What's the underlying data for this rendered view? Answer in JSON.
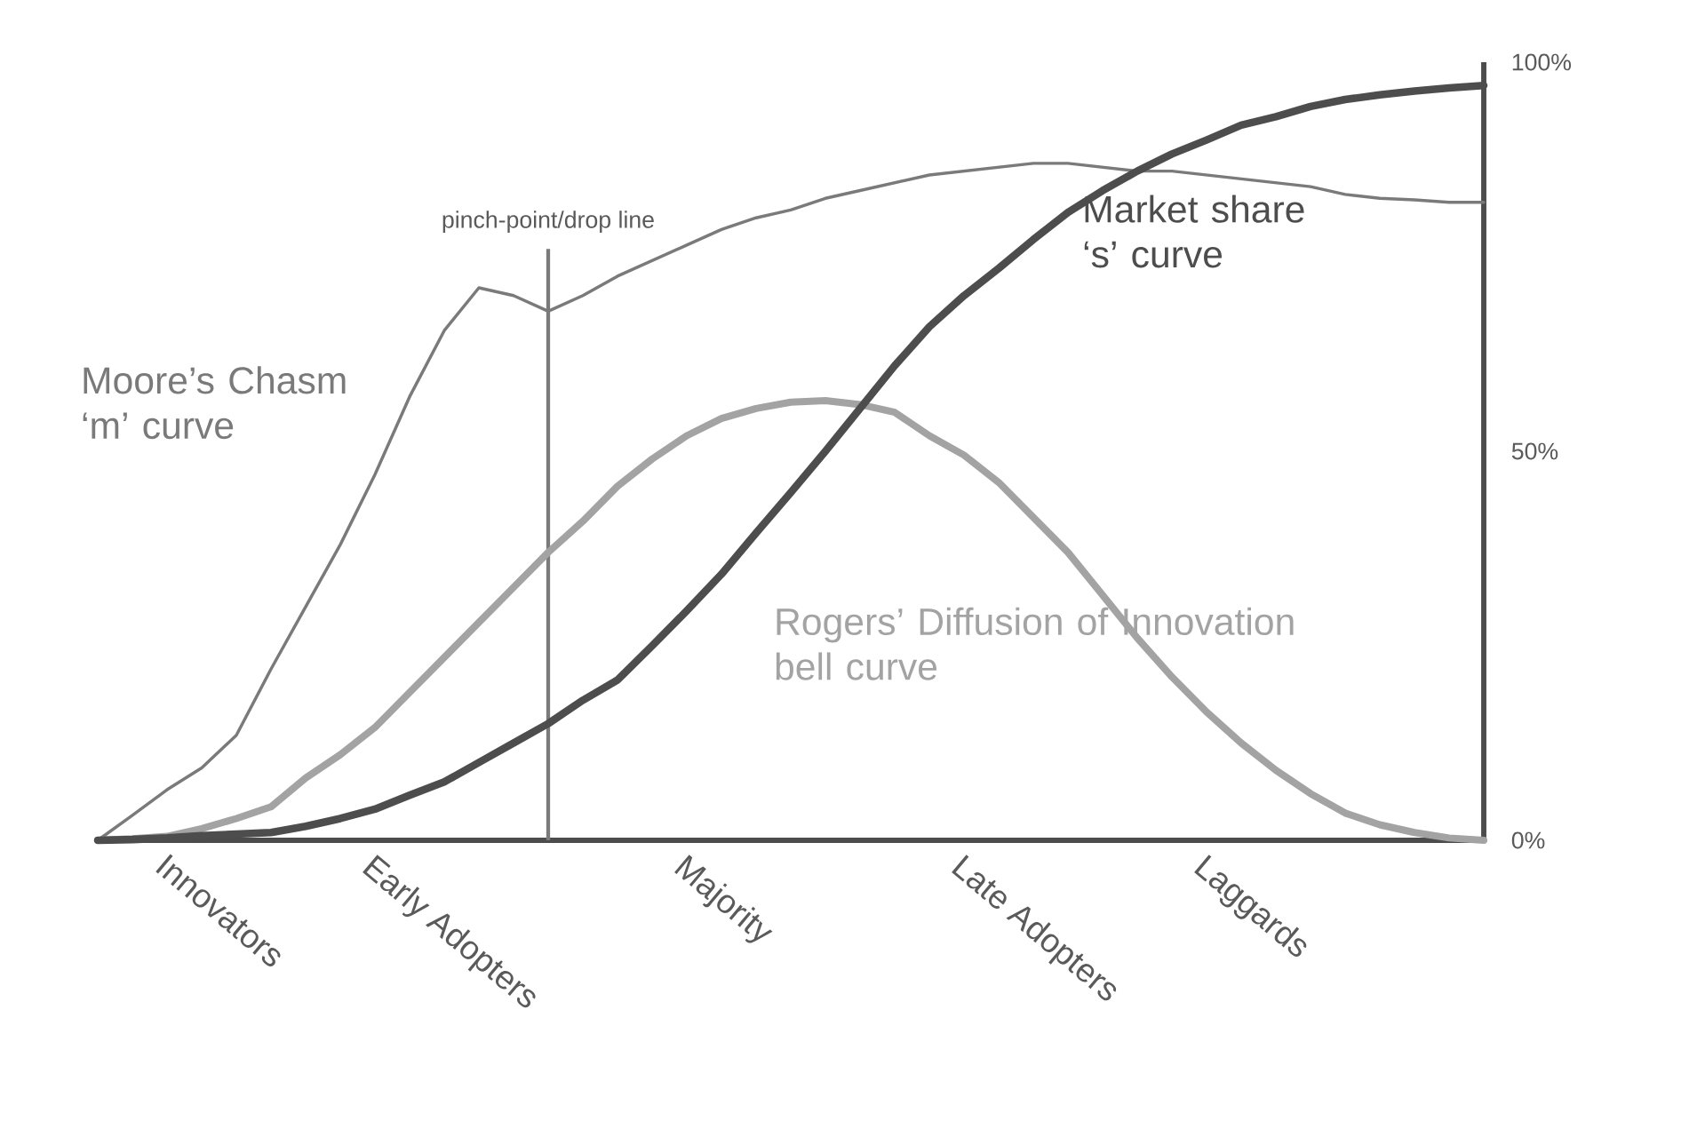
{
  "chart_data": {
    "type": "line",
    "categories": [
      null,
      null,
      "Innovators",
      null,
      null,
      null,
      null,
      null,
      "Early Adopters",
      null,
      null,
      null,
      null,
      null,
      null,
      null,
      null,
      "Majority",
      null,
      null,
      null,
      null,
      null,
      null,
      null,
      "Late Adopters",
      null,
      null,
      null,
      null,
      null,
      null,
      "Laggards",
      null,
      null,
      null,
      null,
      null,
      null,
      null,
      null
    ],
    "ylim": [
      0,
      100
    ],
    "yticks": [
      {
        "value": 0,
        "label": "0%"
      },
      {
        "value": 50,
        "label": "50%"
      },
      {
        "value": 100,
        "label": "100%"
      }
    ],
    "series": [
      {
        "name": "Moore’s Chasm ‘m’ curve",
        "color": "#7a7a7a",
        "values": [
          0,
          3.2,
          6.5,
          9.3,
          13.5,
          22,
          30,
          38,
          47,
          57,
          65.5,
          71,
          70,
          68,
          70,
          72.5,
          74.5,
          76.5,
          78.5,
          80,
          81,
          82.5,
          83.5,
          84.5,
          85.5,
          86,
          86.5,
          87,
          87,
          86.5,
          86,
          86,
          85.5,
          85,
          84.5,
          84,
          83,
          82.5,
          82.3,
          82,
          82
        ]
      },
      {
        "name": "Rogers’ Diffusion of Innovation bell curve",
        "color": "#a3a3a3",
        "values": [
          0,
          0.2,
          0.5,
          1.5,
          2.8,
          4.3,
          8,
          11,
          14.5,
          19,
          23.5,
          28,
          32.5,
          37,
          41,
          45.5,
          49,
          52,
          54.2,
          55.5,
          56.3,
          56.5,
          56,
          55,
          52,
          49.5,
          46,
          41.5,
          37,
          31.5,
          26,
          21,
          16.5,
          12.5,
          9,
          6,
          3.5,
          2,
          1,
          0.3,
          0
        ]
      },
      {
        "name": "Market share ‘s’ curve",
        "color": "#4d4d4d",
        "values": [
          0,
          0.1,
          0.3,
          0.6,
          0.8,
          1,
          1.8,
          2.8,
          4,
          5.8,
          7.5,
          10,
          12.5,
          15,
          18,
          20.6,
          25,
          29.5,
          34.2,
          39.5,
          44.7,
          50,
          55.5,
          61,
          66,
          70,
          73.5,
          77.2,
          80.7,
          83.5,
          86,
          88.2,
          90,
          91.9,
          93,
          94.3,
          95.2,
          95.8,
          96.3,
          96.7,
          97
        ]
      }
    ],
    "annotations": [
      "pinch-point/drop line"
    ]
  }
}
